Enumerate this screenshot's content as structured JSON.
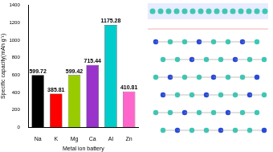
{
  "chart_data": {
    "type": "bar",
    "x_label": "Metal ion battery",
    "y_label": "Specific capacity(mAh g⁻¹)",
    "categories": [
      "Na",
      "K",
      "Mg",
      "Ca",
      "Al",
      "Zn"
    ],
    "values": [
      599.72,
      385.81,
      599.42,
      715.44,
      1175.28,
      410.81
    ],
    "colors": [
      "#000000",
      "#ff0000",
      "#99cc00",
      "#9933cc",
      "#00cccc",
      "#ff66cc"
    ],
    "ylim": [
      0,
      1400
    ],
    "yticks": [
      0,
      200,
      400,
      600,
      800,
      1000,
      1200,
      1400
    ],
    "grid": false,
    "data_labels": true
  }
}
